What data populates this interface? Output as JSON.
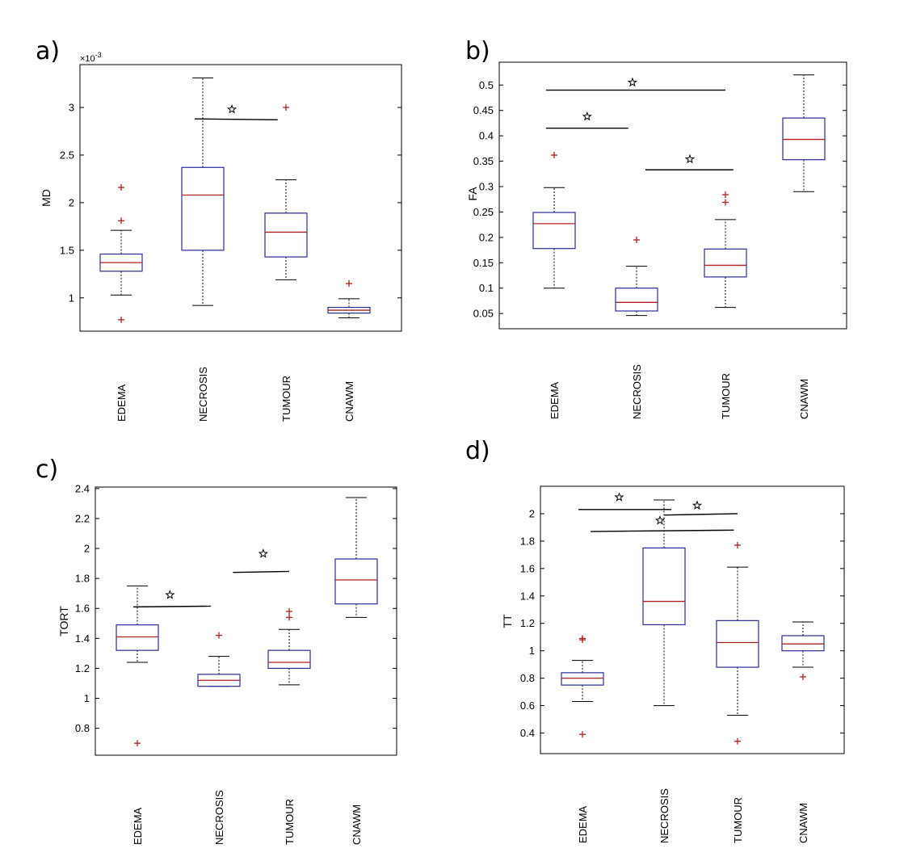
{
  "chart_data": [
    {
      "type": "box",
      "panel_label": "a)",
      "ylabel": "MD",
      "exponent_label": "×10",
      "exponent_power": "-3",
      "categories": [
        "EDEMA",
        "NECROSIS",
        "TUMOUR",
        "CNAWM"
      ],
      "ylim": [
        0.65,
        3.45
      ],
      "yticks": [
        1,
        1.5,
        2,
        2.5,
        3
      ],
      "ytick_labels": [
        "1",
        "1.5",
        "2",
        "2.5",
        "3"
      ],
      "boxes": [
        {
          "whisker_low": 1.03,
          "q1": 1.28,
          "median": 1.37,
          "q3": 1.46,
          "whisker_high": 1.71,
          "outliers": [
            2.16,
            1.81,
            0.77
          ]
        },
        {
          "whisker_low": 0.92,
          "q1": 1.5,
          "median": 2.08,
          "q3": 2.37,
          "whisker_high": 3.31,
          "outliers": []
        },
        {
          "whisker_low": 1.19,
          "q1": 1.43,
          "median": 1.69,
          "q3": 1.89,
          "whisker_high": 2.24,
          "outliers": [
            3.0
          ]
        },
        {
          "whisker_low": 0.79,
          "q1": 0.84,
          "median": 0.87,
          "q3": 0.9,
          "whisker_high": 0.99,
          "outliers": [
            1.15
          ]
        }
      ],
      "significance": [
        {
          "from": 1.9,
          "to": 2.9,
          "y_start": 2.88,
          "y_end": 2.87,
          "star_x": 2.35,
          "star_y": 2.98
        }
      ]
    },
    {
      "type": "box",
      "panel_label": "b)",
      "ylabel": "FA",
      "categories": [
        "EDEMA",
        "NECROSIS",
        "TUMOUR",
        "CNAWM"
      ],
      "ylim": [
        0.02,
        0.545
      ],
      "yticks": [
        0.05,
        0.1,
        0.15,
        0.2,
        0.25,
        0.3,
        0.35,
        0.4,
        0.45,
        0.5
      ],
      "ytick_labels": [
        "0.05",
        "0.1",
        "0.15",
        "0.2",
        "0.25",
        "0.3",
        "0.35",
        "0.4",
        "0.45",
        "0.5"
      ],
      "boxes": [
        {
          "whisker_low": 0.1,
          "q1": 0.178,
          "median": 0.227,
          "q3": 0.249,
          "whisker_high": 0.298,
          "outliers": [
            0.362
          ]
        },
        {
          "whisker_low": 0.046,
          "q1": 0.055,
          "median": 0.072,
          "q3": 0.1,
          "whisker_high": 0.143,
          "outliers": [
            0.195
          ]
        },
        {
          "whisker_low": 0.062,
          "q1": 0.122,
          "median": 0.145,
          "q3": 0.177,
          "whisker_high": 0.235,
          "outliers": [
            0.284,
            0.269
          ]
        },
        {
          "whisker_low": 0.29,
          "q1": 0.353,
          "median": 0.393,
          "q3": 0.435,
          "whisker_high": 0.52,
          "outliers": []
        }
      ],
      "significance": [
        {
          "from": 0.9,
          "to": 3.0,
          "y_start": 0.49,
          "y_end": 0.49,
          "star_x": 1.95,
          "star_y": 0.505
        },
        {
          "from": 0.9,
          "to": 1.9,
          "y_start": 0.415,
          "y_end": 0.415,
          "star_x": 1.4,
          "star_y": 0.438
        },
        {
          "from": 2.1,
          "to": 3.1,
          "y_start": 0.333,
          "y_end": 0.333,
          "star_x": 2.6,
          "star_y": 0.354
        }
      ]
    },
    {
      "type": "box",
      "panel_label": "c)",
      "ylabel": "TORT",
      "categories": [
        "EDEMA",
        "NECROSIS",
        "TUMOUR",
        "CNAWM"
      ],
      "ylim": [
        0.62,
        2.41
      ],
      "yticks": [
        0.8,
        1,
        1.2,
        1.4,
        1.6,
        1.8,
        2,
        2.2,
        2.4
      ],
      "ytick_labels": [
        "0.8",
        "1",
        "1.2",
        "1.4",
        "1.6",
        "1.8",
        "2",
        "2.2",
        "2.4"
      ],
      "boxes": [
        {
          "whisker_low": 1.24,
          "q1": 1.32,
          "median": 1.41,
          "q3": 1.49,
          "whisker_high": 1.75,
          "outliers": [
            0.7
          ]
        },
        {
          "whisker_low": 1.08,
          "q1": 1.08,
          "median": 1.12,
          "q3": 1.16,
          "whisker_high": 1.28,
          "outliers": [
            1.42
          ]
        },
        {
          "whisker_low": 1.09,
          "q1": 1.2,
          "median": 1.24,
          "q3": 1.32,
          "whisker_high": 1.46,
          "outliers": [
            1.58,
            1.54
          ]
        },
        {
          "whisker_low": 1.54,
          "q1": 1.63,
          "median": 1.79,
          "q3": 1.93,
          "whisker_high": 2.34,
          "outliers": []
        }
      ],
      "significance": [
        {
          "from": 0.95,
          "to": 1.9,
          "y_start": 1.61,
          "y_end": 1.615,
          "star_x": 1.4,
          "star_y": 1.69
        },
        {
          "from": 2.2,
          "to": 3.0,
          "y_start": 1.84,
          "y_end": 1.847,
          "star_x": 2.63,
          "star_y": 1.965
        }
      ]
    },
    {
      "type": "box",
      "panel_label": "d)",
      "ylabel": "TT",
      "categories": [
        "EDEMA",
        "NECROSIS",
        "TUMOUR",
        "CNAWM"
      ],
      "ylim": [
        0.25,
        2.2
      ],
      "yticks": [
        0.4,
        0.6,
        0.8,
        1,
        1.2,
        1.4,
        1.6,
        1.8,
        2
      ],
      "ytick_labels": [
        "0.4",
        "0.6",
        "0.8",
        "1",
        "1.2",
        "1.4",
        "1.6",
        "1.8",
        "2"
      ],
      "boxes": [
        {
          "whisker_low": 0.63,
          "q1": 0.75,
          "median": 0.8,
          "q3": 0.84,
          "whisker_high": 0.93,
          "outliers": [
            1.09,
            1.08,
            0.39
          ]
        },
        {
          "whisker_low": 0.6,
          "q1": 1.19,
          "median": 1.36,
          "q3": 1.75,
          "whisker_high": 2.1,
          "outliers": []
        },
        {
          "whisker_low": 0.53,
          "q1": 0.88,
          "median": 1.06,
          "q3": 1.22,
          "whisker_high": 1.61,
          "outliers": [
            1.77,
            0.34
          ]
        },
        {
          "whisker_low": 0.88,
          "q1": 1.0,
          "median": 1.05,
          "q3": 1.11,
          "whisker_high": 1.21,
          "outliers": [
            0.81
          ]
        }
      ],
      "significance": [
        {
          "from": 0.95,
          "to": 2.1,
          "y_start": 2.03,
          "y_end": 2.03,
          "star_x": 1.45,
          "star_y": 2.12
        },
        {
          "from": 2.0,
          "to": 3.0,
          "y_start": 1.99,
          "y_end": 2.0,
          "star_x": 2.45,
          "star_y": 2.06
        },
        {
          "from": 1.1,
          "to": 2.95,
          "y_start": 1.87,
          "y_end": 1.88,
          "star_x": 1.95,
          "star_y": 1.95
        }
      ]
    }
  ]
}
